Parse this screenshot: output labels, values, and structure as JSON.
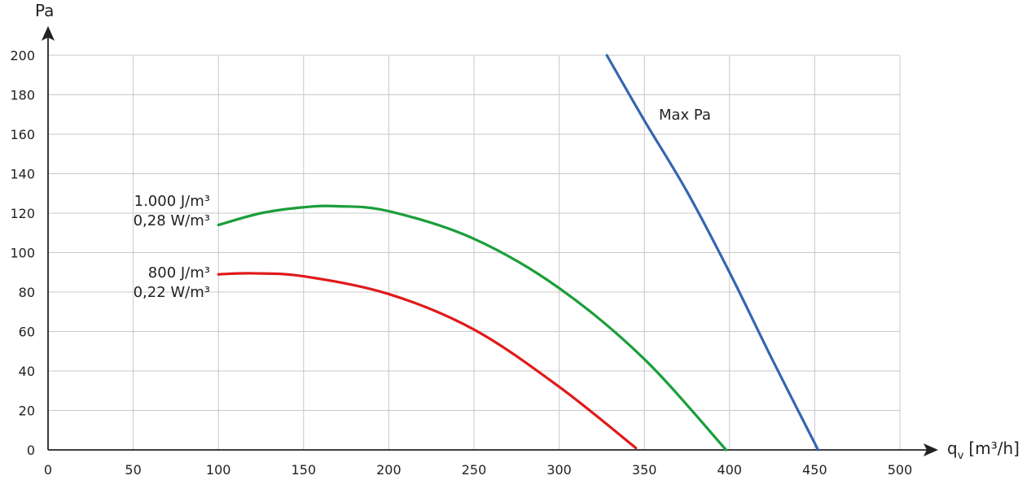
{
  "chart_data": {
    "type": "line",
    "title": "",
    "xlabel": "q",
    "xlabel_sub": "v",
    "xlabel_unit": "[m³/h]",
    "ylabel": "Pa",
    "xlim": [
      0,
      500
    ],
    "ylim": [
      0,
      200
    ],
    "x_ticks": [
      0,
      50,
      100,
      150,
      200,
      250,
      300,
      350,
      400,
      450,
      500
    ],
    "y_ticks": [
      0,
      20,
      40,
      60,
      80,
      100,
      120,
      140,
      160,
      180,
      200
    ],
    "grid": true,
    "series": [
      {
        "color": "#1a9e3a",
        "label_lines": [
          "1.000 J/m³",
          "0,28 W/m³"
        ],
        "x": [
          100,
          125,
          150,
          170,
          200,
          250,
          300,
          350,
          398
        ],
        "y": [
          114,
          120,
          123,
          123.5,
          121,
          107,
          82,
          46,
          0
        ]
      },
      {
        "color": "#e01a1a",
        "label_lines": [
          "800 J/m³",
          "0,22 W/m³"
        ],
        "x": [
          100,
          120,
          150,
          200,
          250,
          300,
          345
        ],
        "y": [
          89,
          89.5,
          88,
          79,
          61,
          32,
          1
        ]
      },
      {
        "color": "#3566b0",
        "label_lines": [
          "Max Pa"
        ],
        "x": [
          328,
          350,
          375,
          400,
          425,
          452
        ],
        "y": [
          200,
          167,
          131,
          90,
          46,
          0
        ]
      }
    ]
  }
}
